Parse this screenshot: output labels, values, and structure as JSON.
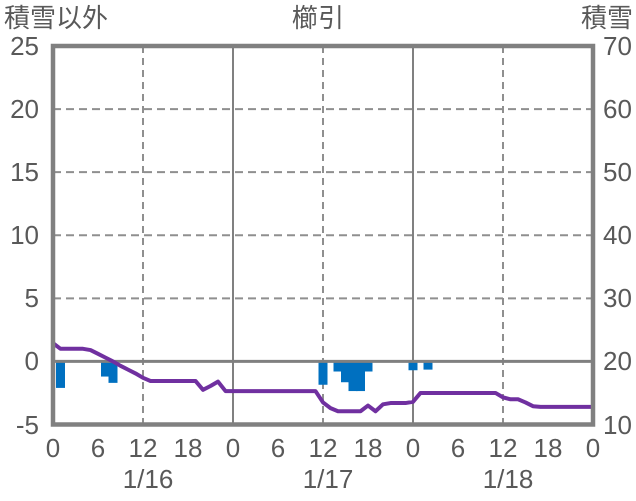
{
  "chart_data": {
    "type": "line+bar",
    "station_title": "櫛引",
    "left_axis_title": "積雪以外",
    "right_axis_title": "積雪",
    "left_axis": {
      "ticks": [
        25,
        20,
        15,
        10,
        5,
        0,
        -5
      ],
      "range": [
        -5,
        25
      ],
      "zero_line": 0
    },
    "right_axis": {
      "ticks": [
        70,
        60,
        50,
        40,
        30,
        20,
        10
      ],
      "range": [
        10,
        70
      ]
    },
    "x_axis": {
      "hours_total": 72,
      "hour_tick_step": 6,
      "hour_tick_labels": [
        "0",
        "6",
        "12",
        "18",
        "0",
        "6",
        "12",
        "18",
        "0",
        "6",
        "12",
        "18",
        "0"
      ],
      "date_labels": [
        "1/16",
        "1/17",
        "1/18"
      ],
      "solid_gridline_hours": [
        24,
        48
      ],
      "dashed_gridline_hours": [
        12,
        36,
        60
      ]
    },
    "line_series": {
      "name": "snow-depth",
      "axis": "right",
      "color": "#7030A0",
      "hourly_values": [
        22.9,
        22,
        22,
        22,
        22,
        21.8,
        21.2,
        20.6,
        20,
        19.3,
        18.7,
        18.1,
        17.4,
        16.9,
        16.9,
        16.9,
        16.9,
        16.9,
        16.9,
        16.9,
        15.5,
        16.1,
        16.8,
        15.3,
        15.3,
        15.3,
        15.3,
        15.3,
        15.3,
        15.3,
        15.3,
        15.3,
        15.3,
        15.3,
        15.3,
        15.3,
        13.5,
        12.6,
        12.1,
        12.1,
        12.1,
        12.1,
        13,
        12.1,
        13.2,
        13.4,
        13.4,
        13.4,
        13.6,
        15,
        15,
        15,
        15,
        15,
        15,
        15,
        15,
        15,
        15,
        15,
        14.3,
        14,
        14,
        13.5,
        12.9,
        12.8,
        12.8,
        12.8,
        12.8,
        12.8,
        12.8,
        12.8,
        12.8
      ]
    },
    "bar_series": {
      "name": "non-snow-values",
      "axis": "left",
      "color": "#0070C0",
      "points": [
        {
          "t": 1,
          "v": -2.1
        },
        {
          "t": 7,
          "v": -1.2
        },
        {
          "t": 8,
          "v": -1.7
        },
        {
          "t": 36,
          "v": -1.85
        },
        {
          "t": 38,
          "v": -0.8
        },
        {
          "t": 39,
          "v": -1.65
        },
        {
          "t": 40,
          "v": -2.35
        },
        {
          "t": 41,
          "v": -2.35
        },
        {
          "t": 42,
          "v": -0.8
        },
        {
          "t": 48,
          "v": -0.7
        },
        {
          "t": 50,
          "v": -0.65
        }
      ]
    },
    "colors": {
      "border": "#808080",
      "gridline": "#8f8f8f",
      "text": "#595959",
      "background": "#FFFFFF",
      "line": "#7030A0",
      "bar": "#0070C0"
    },
    "grid": "on",
    "legend": "none"
  }
}
